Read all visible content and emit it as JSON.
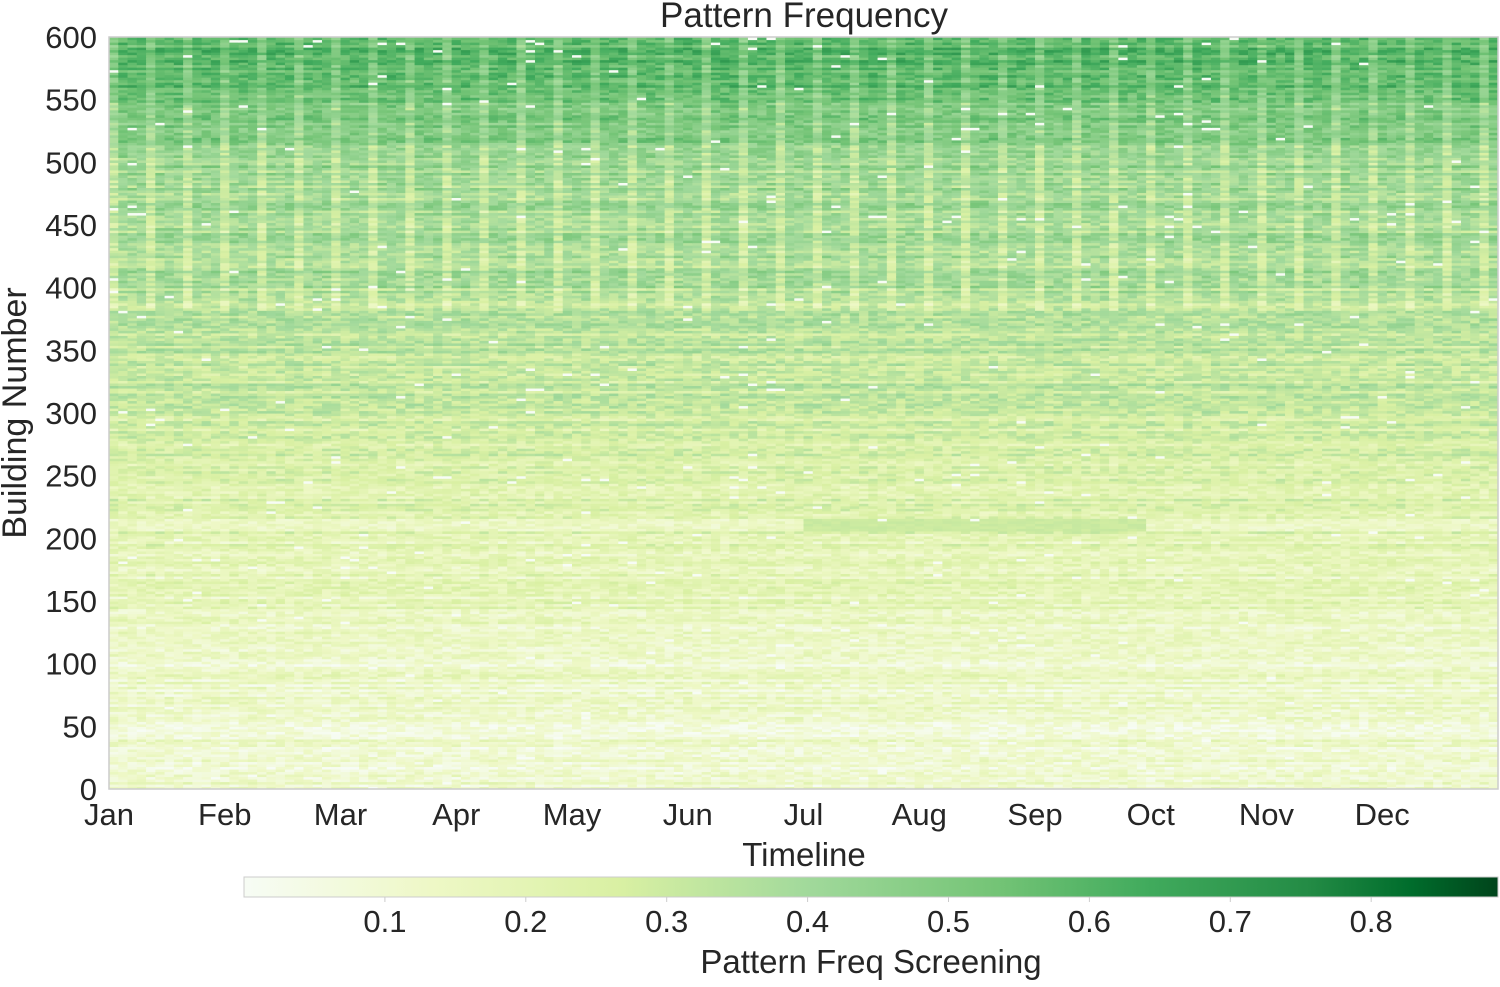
{
  "chart_data": {
    "type": "heatmap",
    "title": "Pattern Frequency",
    "xlabel": "Timeline",
    "ylabel": "Building Number",
    "x_tick_labels": [
      "Jan",
      "Feb",
      "Mar",
      "Apr",
      "May",
      "Jun",
      "Jul",
      "Aug",
      "Sep",
      "Oct",
      "Nov",
      "Dec"
    ],
    "y_ticks": [
      0,
      50,
      100,
      150,
      200,
      250,
      300,
      350,
      400,
      450,
      500,
      550,
      600
    ],
    "ylim": [
      0,
      600
    ],
    "x_range": [
      "Jan",
      "Dec"
    ],
    "n_buildings": 600,
    "colorbar": {
      "label": "Pattern Freq Screening",
      "orientation": "horizontal",
      "placement": "bottom",
      "colormap": "Greens",
      "ticks": [
        0.1,
        0.2,
        0.3,
        0.4,
        0.5,
        0.6,
        0.7,
        0.8
      ],
      "range": [
        0.0,
        0.89
      ]
    },
    "trend_summary": {
      "typical_value_by_building_band": [
        {
          "buildings": [
            0,
            100
          ],
          "value": 0.1
        },
        {
          "buildings": [
            100,
            200
          ],
          "value": 0.14
        },
        {
          "buildings": [
            200,
            300
          ],
          "value": 0.22
        },
        {
          "buildings": [
            300,
            400
          ],
          "value": 0.3
        },
        {
          "buildings": [
            400,
            500
          ],
          "value": 0.38
        },
        {
          "buildings": [
            500,
            560
          ],
          "value": 0.45
        },
        {
          "buildings": [
            560,
            600
          ],
          "value": 0.58
        }
      ],
      "summer_highlight": {
        "buildings": [
          205,
          215
        ],
        "months": [
          "Jul",
          "Sep"
        ],
        "value": 0.3
      }
    },
    "grid": false,
    "colors": {
      "low": "#f7fcf5",
      "mid": "#74c476",
      "high": "#00441b",
      "frame": "#cccccc"
    }
  }
}
